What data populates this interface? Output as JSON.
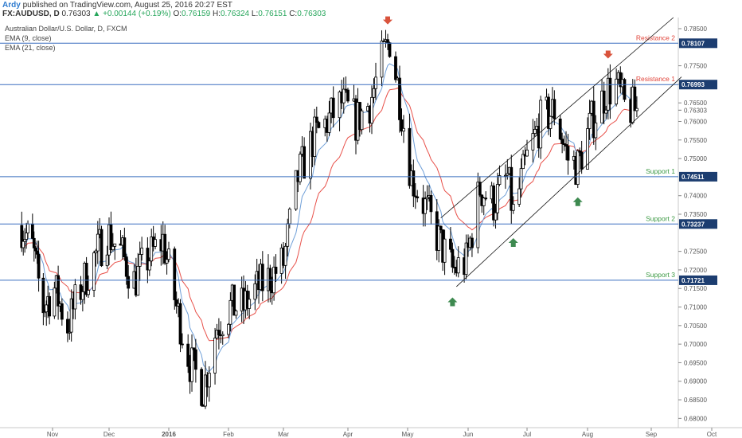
{
  "header": {
    "author": "Ardy",
    "published_text": "published on TradingView.com, August 25, 2016 20:27 EST",
    "symbol": "FX:AUDUSD, D",
    "last": "0.76303",
    "change": "▲ +0.00144 (+0.19%)",
    "o_label": "O:",
    "o": "0.76159",
    "h_label": "H:",
    "h": "0.76324",
    "l_label": "L:",
    "l": "0.76151",
    "c_label": "C:",
    "c": "0.76303"
  },
  "legend": {
    "title": "Australian Dollar/U.S. Dollar, D, FXCM",
    "ema9": "EMA (9, close)",
    "ema21": "EMA (21, close)"
  },
  "colors": {
    "resistance": "#e0443a",
    "support": "#3d9a45",
    "hline": "#3a6fbf",
    "ema9": "#6f9fd8",
    "ema21": "#e8514a",
    "candle": "#000000",
    "price_badge": "#1c3d70"
  },
  "chart_data": {
    "type": "candlestick",
    "title": "Australian Dollar/U.S. Dollar, D, FXCM",
    "ylim": [
      0.6775,
      0.788
    ],
    "y_ticks": [
      "0.78500",
      "0.77500",
      "0.77000",
      "0.76500",
      "0.76303",
      "0.76000",
      "0.75500",
      "0.75000",
      "0.74000",
      "0.73500",
      "0.72500",
      "0.72000",
      "0.71500",
      "0.71000",
      "0.70500",
      "0.70000",
      "0.69500",
      "0.69000",
      "0.68500",
      "0.68000"
    ],
    "x_ticks": [
      "Nov",
      "Dec",
      "2016",
      "Feb",
      "Mar",
      "Apr",
      "May",
      "Jun",
      "Jul",
      "Aug",
      "Sep",
      "Oct"
    ],
    "levels": [
      {
        "name": "Resistance 2",
        "value": 0.78107,
        "label": "0.78107"
      },
      {
        "name": "Resistance 1",
        "value": 0.76993,
        "label": "0.76993"
      },
      {
        "name": "Support 1",
        "value": 0.74511,
        "label": "0.74511"
      },
      {
        "name": "Support 2",
        "value": 0.73237,
        "label": "0.73237"
      },
      {
        "name": "Support 3",
        "value": 0.71721,
        "label": "0.71721"
      }
    ],
    "current_price": "0.76303",
    "trend_channel": {
      "lower": [
        [
          "2016-05-26",
          0.7155
        ],
        [
          "2016-09-16",
          0.772
        ]
      ],
      "upper": [
        [
          "2016-05-18",
          0.734
        ],
        [
          "2016-09-12",
          0.788
        ]
      ]
    },
    "arrows": [
      {
        "dir": "down",
        "date": "2016-04-21",
        "value": 0.787
      },
      {
        "dir": "down",
        "date": "2016-08-11",
        "value": 0.7778
      },
      {
        "dir": "up",
        "date": "2016-05-24",
        "value": 0.7115
      },
      {
        "dir": "up",
        "date": "2016-06-24",
        "value": 0.7275
      },
      {
        "dir": "up",
        "date": "2016-07-27",
        "value": 0.7385
      }
    ],
    "price_path": [
      [
        "2015-10-12",
        0.732
      ],
      [
        "2015-10-19",
        0.726
      ],
      [
        "2015-10-26",
        0.71
      ],
      [
        "2015-11-02",
        0.715
      ],
      [
        "2015-11-09",
        0.705
      ],
      [
        "2015-11-16",
        0.715
      ],
      [
        "2015-11-23",
        0.723
      ],
      [
        "2015-11-30",
        0.73
      ],
      [
        "2015-12-07",
        0.725
      ],
      [
        "2015-12-14",
        0.717
      ],
      [
        "2015-12-21",
        0.723
      ],
      [
        "2015-12-29",
        0.728
      ],
      [
        "2016-01-05",
        0.71
      ],
      [
        "2016-01-12",
        0.695
      ],
      [
        "2016-01-19",
        0.688
      ],
      [
        "2016-01-26",
        0.705
      ],
      [
        "2016-02-02",
        0.71
      ],
      [
        "2016-02-09",
        0.71
      ],
      [
        "2016-02-16",
        0.715
      ],
      [
        "2016-02-23",
        0.718
      ],
      [
        "2016-03-01",
        0.722
      ],
      [
        "2016-03-08",
        0.745
      ],
      [
        "2016-03-15",
        0.755
      ],
      [
        "2016-03-22",
        0.76
      ],
      [
        "2016-03-29",
        0.765
      ],
      [
        "2016-04-05",
        0.76
      ],
      [
        "2016-04-12",
        0.765
      ],
      [
        "2016-04-19",
        0.778
      ],
      [
        "2016-04-22",
        0.782
      ],
      [
        "2016-04-26",
        0.77
      ],
      [
        "2016-05-03",
        0.745
      ],
      [
        "2016-05-10",
        0.737
      ],
      [
        "2016-05-17",
        0.728
      ],
      [
        "2016-05-24",
        0.72
      ],
      [
        "2016-05-31",
        0.722
      ],
      [
        "2016-06-07",
        0.742
      ],
      [
        "2016-06-14",
        0.738
      ],
      [
        "2016-06-21",
        0.745
      ],
      [
        "2016-06-24",
        0.735
      ],
      [
        "2016-07-01",
        0.75
      ],
      [
        "2016-07-08",
        0.76
      ],
      [
        "2016-07-15",
        0.763
      ],
      [
        "2016-07-22",
        0.75
      ],
      [
        "2016-07-27",
        0.748
      ],
      [
        "2016-08-03",
        0.76
      ],
      [
        "2016-08-10",
        0.768
      ],
      [
        "2016-08-15",
        0.77
      ],
      [
        "2016-08-19",
        0.764
      ],
      [
        "2016-08-25",
        0.763
      ]
    ]
  }
}
